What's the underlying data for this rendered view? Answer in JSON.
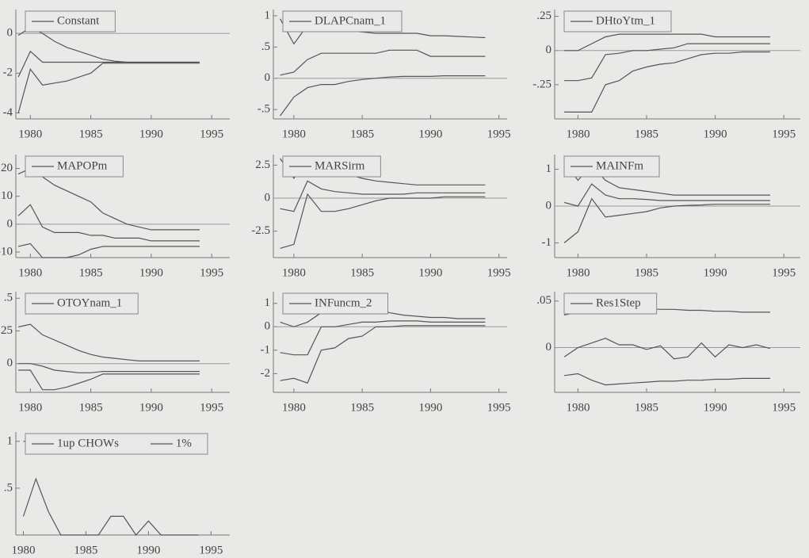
{
  "chart_data": [
    {
      "type": "line",
      "x": [
        1979,
        1980,
        1981,
        1982,
        1983,
        1984,
        1985,
        1986,
        1987,
        1988,
        1989,
        1990,
        1991,
        1992,
        1993,
        1994
      ],
      "xlim": [
        1978.8,
        1996.5
      ],
      "xticks": [
        1980,
        1985,
        1990,
        1995
      ],
      "ylim": [
        -4.3,
        1.2
      ],
      "yticks": [
        0,
        -2,
        -4
      ],
      "series": [
        {
          "name": "Constant",
          "color": "#555",
          "values": [
            -0.1,
            0.3,
            0,
            -0.4,
            -0.7,
            -0.9,
            -1.1,
            -1.3,
            -1.4,
            -1.45,
            -1.45,
            -1.45,
            -1.45,
            -1.45,
            -1.45,
            -1.45
          ]
        },
        {
          "color": "#555",
          "values": [
            -2.2,
            -0.9,
            -1.45,
            -1.45,
            -1.45,
            -1.45,
            -1.45,
            -1.45,
            -1.45,
            -1.45,
            -1.45,
            -1.45,
            -1.45,
            -1.45,
            -1.45,
            -1.45
          ]
        },
        {
          "color": "#555",
          "values": [
            -4,
            -1.8,
            -2.6,
            -2.5,
            -2.4,
            -2.2,
            -2,
            -1.5,
            -1.5,
            -1.5,
            -1.5,
            -1.5,
            -1.5,
            -1.5,
            -1.5,
            -1.5
          ]
        }
      ]
    },
    {
      "type": "line",
      "x": [
        1979,
        1980,
        1981,
        1982,
        1983,
        1984,
        1985,
        1986,
        1987,
        1988,
        1989,
        1990,
        1991,
        1992,
        1993,
        1994
      ],
      "xlim": [
        1978.5,
        1995.6
      ],
      "xticks": [
        1980,
        1985,
        1990,
        1995
      ],
      "ylim": [
        -0.65,
        1.1
      ],
      "yticks": [
        1,
        {
          "value": 0.5,
          "label": ".5"
        },
        0,
        {
          "value": -0.5,
          "label": "-.5"
        }
      ],
      "series": [
        {
          "name": "DLAPCnam_1",
          "color": "#555",
          "values": [
            0.95,
            0.55,
            0.85,
            0.8,
            0.78,
            0.76,
            0.74,
            0.72,
            0.72,
            0.72,
            0.72,
            0.68,
            0.68,
            0.67,
            0.66,
            0.65
          ]
        },
        {
          "color": "#555",
          "values": [
            0.05,
            0.1,
            0.3,
            0.4,
            0.4,
            0.4,
            0.4,
            0.4,
            0.45,
            0.45,
            0.45,
            0.35,
            0.35,
            0.35,
            0.35,
            0.35
          ]
        },
        {
          "color": "#555",
          "values": [
            -0.6,
            -0.3,
            -0.15,
            -0.1,
            -0.1,
            -0.05,
            -0.02,
            0,
            0.02,
            0.03,
            0.03,
            0.03,
            0.04,
            0.04,
            0.04,
            0.04
          ]
        }
      ]
    },
    {
      "type": "line",
      "x": [
        1979,
        1980,
        1981,
        1982,
        1983,
        1984,
        1985,
        1986,
        1987,
        1988,
        1989,
        1990,
        1991,
        1992,
        1993,
        1994
      ],
      "xlim": [
        1978.3,
        1996.2
      ],
      "xticks": [
        1980,
        1985,
        1990,
        1995
      ],
      "ylim": [
        -0.5,
        0.3
      ],
      "yticks": [
        {
          "value": 0.25,
          "label": ".25"
        },
        0,
        {
          "value": -0.25,
          "label": "-.25"
        }
      ],
      "series": [
        {
          "name": "DHtoYtm_1",
          "color": "#555",
          "values": [
            0,
            0,
            0.05,
            0.1,
            0.12,
            0.12,
            0.12,
            0.12,
            0.12,
            0.12,
            0.12,
            0.1,
            0.1,
            0.1,
            0.1,
            0.1
          ]
        },
        {
          "color": "#555",
          "values": [
            -0.22,
            -0.22,
            -0.2,
            -0.03,
            -0.02,
            0,
            0,
            0.01,
            0.02,
            0.05,
            0.05,
            0.05,
            0.05,
            0.05,
            0.05,
            0.05
          ]
        },
        {
          "color": "#555",
          "values": [
            -0.45,
            -0.45,
            -0.45,
            -0.25,
            -0.22,
            -0.15,
            -0.12,
            -0.1,
            -0.09,
            -0.06,
            -0.03,
            -0.02,
            -0.02,
            -0.01,
            -0.01,
            -0.01
          ]
        }
      ]
    },
    {
      "type": "line",
      "x": [
        1979,
        1980,
        1981,
        1982,
        1983,
        1984,
        1985,
        1986,
        1987,
        1988,
        1989,
        1990,
        1991,
        1992,
        1993,
        1994
      ],
      "xlim": [
        1978.8,
        1996.5
      ],
      "xticks": [
        1980,
        1985,
        1990,
        1995
      ],
      "ylim": [
        -12,
        25
      ],
      "yticks": [
        20,
        10,
        0,
        -10
      ],
      "series": [
        {
          "name": "MAPOPm",
          "color": "#555",
          "values": [
            18,
            20,
            17,
            14,
            12,
            10,
            8,
            4,
            2,
            0,
            -1,
            -2,
            -2,
            -2,
            -2,
            -2
          ]
        },
        {
          "color": "#555",
          "values": [
            3,
            7,
            -1,
            -3,
            -3,
            -3,
            -4,
            -4,
            -5,
            -5,
            -5,
            -6,
            -6,
            -6,
            -6,
            -6
          ]
        },
        {
          "color": "#555",
          "values": [
            -8,
            -7,
            -12,
            -12,
            -12,
            -11,
            -9,
            -8,
            -8,
            -8,
            -8,
            -8,
            -8,
            -8,
            -8,
            -8
          ]
        }
      ]
    },
    {
      "type": "line",
      "x": [
        1979,
        1980,
        1981,
        1982,
        1983,
        1984,
        1985,
        1986,
        1987,
        1988,
        1989,
        1990,
        1991,
        1992,
        1993,
        1994
      ],
      "xlim": [
        1978.5,
        1995.6
      ],
      "xticks": [
        1980,
        1985,
        1990,
        1995
      ],
      "ylim": [
        -4.5,
        3.3
      ],
      "yticks": [
        2.5,
        0,
        -2.5
      ],
      "series": [
        {
          "name": "MARSirm",
          "color": "#555",
          "values": [
            3,
            1.5,
            3,
            2.5,
            2,
            1.8,
            1.5,
            1.3,
            1.2,
            1.1,
            1,
            1,
            1,
            1,
            1,
            1
          ]
        },
        {
          "color": "#555",
          "values": [
            -0.8,
            -1,
            1.3,
            0.7,
            0.5,
            0.4,
            0.3,
            0.3,
            0.3,
            0.3,
            0.4,
            0.4,
            0.4,
            0.4,
            0.4,
            0.4
          ]
        },
        {
          "color": "#555",
          "values": [
            -3.8,
            -3.5,
            0.3,
            -1,
            -1,
            -0.8,
            -0.5,
            -0.2,
            0,
            0,
            0,
            0,
            0.1,
            0.1,
            0.1,
            0.1
          ]
        }
      ]
    },
    {
      "type": "line",
      "x": [
        1979,
        1980,
        1981,
        1982,
        1983,
        1984,
        1985,
        1986,
        1987,
        1988,
        1989,
        1990,
        1991,
        1992,
        1993,
        1994
      ],
      "xlim": [
        1978.3,
        1996.2
      ],
      "xticks": [
        1980,
        1985,
        1990,
        1995
      ],
      "ylim": [
        -1.4,
        1.4
      ],
      "yticks": [
        1,
        0,
        -1
      ],
      "series": [
        {
          "name": "MAINFm",
          "color": "#555",
          "values": [
            1.2,
            0.7,
            1.1,
            0.7,
            0.5,
            0.45,
            0.4,
            0.35,
            0.3,
            0.3,
            0.3,
            0.3,
            0.3,
            0.3,
            0.3,
            0.3
          ]
        },
        {
          "color": "#555",
          "values": [
            0.1,
            0,
            0.6,
            0.3,
            0.2,
            0.2,
            0.18,
            0.15,
            0.15,
            0.15,
            0.15,
            0.15,
            0.15,
            0.15,
            0.15,
            0.15
          ]
        },
        {
          "color": "#555",
          "values": [
            -1,
            -0.7,
            0.2,
            -0.3,
            -0.25,
            -0.2,
            -0.15,
            -0.05,
            0,
            0.02,
            0.03,
            0.05,
            0.05,
            0.05,
            0.05,
            0.05
          ]
        }
      ]
    },
    {
      "type": "line",
      "x": [
        1979,
        1980,
        1981,
        1982,
        1983,
        1984,
        1985,
        1986,
        1987,
        1988,
        1989,
        1990,
        1991,
        1992,
        1993,
        1994
      ],
      "xlim": [
        1978.8,
        1996.5
      ],
      "xticks": [
        1980,
        1985,
        1990,
        1995
      ],
      "ylim": [
        -0.22,
        0.55
      ],
      "yticks": [
        {
          "value": 0.5,
          "label": ".5"
        },
        {
          "value": 0.25,
          "label": ".25"
        },
        0
      ],
      "series": [
        {
          "name": "OTOYnam_1",
          "color": "#555",
          "values": [
            0.28,
            0.3,
            0.22,
            0.18,
            0.14,
            0.1,
            0.07,
            0.05,
            0.04,
            0.03,
            0.02,
            0.02,
            0.02,
            0.02,
            0.02,
            0.02
          ]
        },
        {
          "color": "#555",
          "values": [
            0,
            0,
            -0.02,
            -0.05,
            -0.06,
            -0.07,
            -0.07,
            -0.06,
            -0.06,
            -0.06,
            -0.06,
            -0.06,
            -0.06,
            -0.06,
            -0.06,
            -0.06
          ]
        },
        {
          "color": "#555",
          "values": [
            -0.05,
            -0.05,
            -0.2,
            -0.2,
            -0.18,
            -0.15,
            -0.12,
            -0.08,
            -0.08,
            -0.08,
            -0.08,
            -0.08,
            -0.08,
            -0.08,
            -0.08,
            -0.08
          ]
        }
      ]
    },
    {
      "type": "line",
      "x": [
        1979,
        1980,
        1981,
        1982,
        1983,
        1984,
        1985,
        1986,
        1987,
        1988,
        1989,
        1990,
        1991,
        1992,
        1993,
        1994
      ],
      "xlim": [
        1978.5,
        1995.6
      ],
      "xticks": [
        1980,
        1985,
        1990,
        1995
      ],
      "ylim": [
        -2.8,
        1.5
      ],
      "yticks": [
        1,
        0,
        -1,
        -2
      ],
      "series": [
        {
          "name": "INFuncm_2",
          "color": "#555",
          "values": [
            0.2,
            0,
            0.2,
            0.6,
            0.8,
            0.9,
            0.9,
            0.8,
            0.6,
            0.5,
            0.45,
            0.4,
            0.4,
            0.35,
            0.35,
            0.35
          ]
        },
        {
          "color": "#555",
          "values": [
            -1.1,
            -1.2,
            -1.2,
            0,
            0,
            0.1,
            0.2,
            0.2,
            0.25,
            0.25,
            0.25,
            0.2,
            0.2,
            0.2,
            0.2,
            0.2
          ]
        },
        {
          "color": "#555",
          "values": [
            -2.3,
            -2.2,
            -2.4,
            -1,
            -0.9,
            -0.5,
            -0.4,
            0,
            0,
            0.05,
            0.05,
            0.05,
            0.05,
            0.05,
            0.05,
            0.05
          ]
        }
      ]
    },
    {
      "type": "line",
      "x": [
        1979,
        1980,
        1981,
        1982,
        1983,
        1984,
        1985,
        1986,
        1987,
        1988,
        1989,
        1990,
        1991,
        1992,
        1993,
        1994
      ],
      "xlim": [
        1978.3,
        1996.2
      ],
      "xticks": [
        1980,
        1985,
        1990,
        1995
      ],
      "ylim": [
        -0.048,
        0.06
      ],
      "yticks": [
        {
          "value": 0.05,
          "label": ".05"
        },
        0
      ],
      "series": [
        {
          "name": "Res1Step",
          "color": "#555",
          "values": [
            0.035,
            0.038,
            0.042,
            0.045,
            0.044,
            0.043,
            0.042,
            0.041,
            0.041,
            0.04,
            0.04,
            0.039,
            0.039,
            0.038,
            0.038,
            0.038
          ]
        },
        {
          "color": "#555",
          "values": [
            -0.01,
            0,
            0.005,
            0.01,
            0.003,
            0.003,
            -0.002,
            0.002,
            -0.012,
            -0.01,
            0.005,
            -0.01,
            0.003,
            0,
            0.003,
            -0.001
          ]
        },
        {
          "color": "#555",
          "values": [
            -0.03,
            -0.028,
            -0.035,
            -0.04,
            -0.039,
            -0.038,
            -0.037,
            -0.036,
            -0.036,
            -0.035,
            -0.035,
            -0.034,
            -0.034,
            -0.033,
            -0.033,
            -0.033
          ]
        }
      ]
    },
    {
      "type": "line",
      "x": [
        1980,
        1981,
        1982,
        1983,
        1984,
        1985,
        1986,
        1987,
        1988,
        1989,
        1990,
        1991,
        1992,
        1993,
        1994
      ],
      "xlim": [
        1979.4,
        1996.5
      ],
      "xticks": [
        1980,
        1985,
        1990,
        1995
      ],
      "ylim": [
        0,
        1.1
      ],
      "yticks": [
        1,
        {
          "value": 0.5,
          "label": ".5"
        }
      ],
      "series": [
        {
          "name": "1up CHOWs",
          "color": "#555",
          "values": [
            0.2,
            0.6,
            0.25,
            0,
            0,
            0,
            0,
            0.2,
            0.2,
            0,
            0.15,
            0,
            0,
            0,
            0
          ]
        },
        {
          "name": "1%",
          "color": "#555",
          "values": [
            1,
            1,
            1,
            1,
            1,
            1,
            1,
            1,
            1,
            1,
            1,
            1,
            1,
            1,
            1
          ]
        }
      ]
    }
  ]
}
